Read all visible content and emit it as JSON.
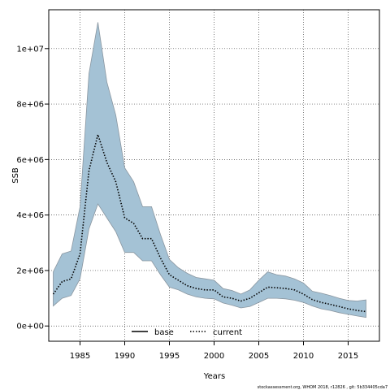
{
  "chart_data": {
    "type": "area",
    "xlabel": "Years",
    "ylabel": "SSB",
    "xlim": [
      1981.5,
      2018.5
    ],
    "ylim": [
      -550000,
      11400000
    ],
    "x_ticks": [
      1985,
      1990,
      1995,
      2000,
      2005,
      2010,
      2015
    ],
    "x_tick_labels": [
      "1985",
      "1990",
      "1995",
      "2000",
      "2005",
      "2010",
      "2015"
    ],
    "y_ticks": [
      0,
      2000000,
      4000000,
      6000000,
      8000000,
      10000000
    ],
    "y_tick_labels": [
      "0e+00",
      "2e+06",
      "4e+06",
      "6e+06",
      "8e+06",
      "1e+07"
    ],
    "grid": true,
    "legend": {
      "placement": "bottom-center",
      "entries": [
        {
          "label": "base",
          "style": "solid",
          "color": "#000000"
        },
        {
          "label": "current",
          "style": "dotted",
          "color": "#000000"
        }
      ]
    },
    "band_color": "#a4c2d5",
    "band_edge_color": "#8a96a0",
    "x": [
      1982,
      1983,
      1984,
      1985,
      1986,
      1987,
      1988,
      1989,
      1990,
      1991,
      1992,
      1993,
      1994,
      1995,
      1996,
      1997,
      1998,
      1999,
      2000,
      2001,
      2002,
      2003,
      2004,
      2005,
      2006,
      2007,
      2008,
      2009,
      2010,
      2011,
      2012,
      2013,
      2014,
      2015,
      2016,
      2017
    ],
    "series": [
      {
        "name": "current",
        "values": [
          1150000,
          1600000,
          1700000,
          2600000,
          5600000,
          6900000,
          5900000,
          5200000,
          3900000,
          3700000,
          3150000,
          3150000,
          2450000,
          1850000,
          1650000,
          1450000,
          1350000,
          1300000,
          1300000,
          1050000,
          1000000,
          900000,
          1000000,
          1200000,
          1400000,
          1380000,
          1350000,
          1300000,
          1150000,
          950000,
          850000,
          780000,
          700000,
          620000,
          560000,
          520000
        ],
        "lower": [
          720000,
          1000000,
          1100000,
          1700000,
          3500000,
          4400000,
          3900000,
          3400000,
          2650000,
          2650000,
          2350000,
          2350000,
          1850000,
          1400000,
          1300000,
          1150000,
          1050000,
          1000000,
          980000,
          830000,
          750000,
          650000,
          700000,
          850000,
          1000000,
          1000000,
          980000,
          930000,
          850000,
          720000,
          620000,
          560000,
          480000,
          420000,
          360000,
          310000
        ],
        "upper": [
          1950000,
          2600000,
          2700000,
          4300000,
          9100000,
          10950000,
          8800000,
          7600000,
          5700000,
          5200000,
          4300000,
          4300000,
          3300000,
          2400000,
          2100000,
          1900000,
          1750000,
          1700000,
          1650000,
          1350000,
          1280000,
          1150000,
          1300000,
          1650000,
          1950000,
          1850000,
          1800000,
          1700000,
          1550000,
          1250000,
          1180000,
          1100000,
          1000000,
          920000,
          900000,
          940000
        ]
      }
    ]
  },
  "footer": "stockassessment.org, WHOM 2018, r12826 , git: 5b334405cda7"
}
